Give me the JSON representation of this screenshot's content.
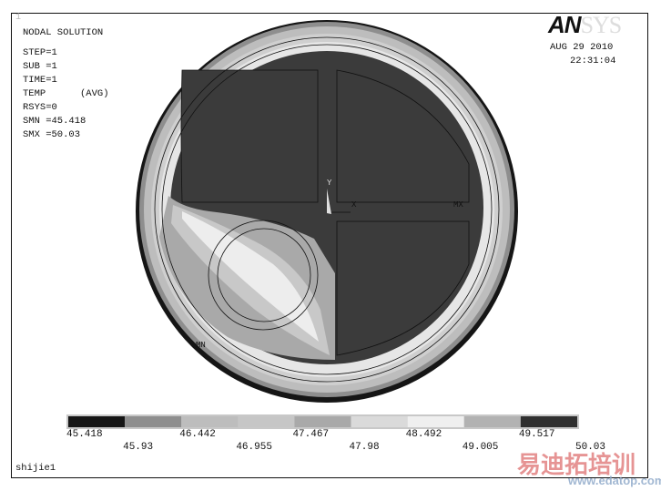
{
  "window_number": "1",
  "title": "NODAL SOLUTION",
  "info": [
    "STEP=1",
    "SUB =1",
    "TIME=1",
    "TEMP      (AVG)",
    "RSYS=0",
    "SMN =45.418",
    "SMX =50.03"
  ],
  "logo": {
    "part1": "AN",
    "part2": "SYS"
  },
  "date": "AUG 29 2010",
  "time": "22:31:04",
  "markers": {
    "min": "MN",
    "max": "MX",
    "axis_x": "X",
    "axis_y": "Y",
    "axis_z": "Z"
  },
  "legend": {
    "labels": [
      "45.418",
      "45.93",
      "46.442",
      "46.955",
      "47.467",
      "47.98",
      "48.492",
      "49.005",
      "49.517",
      "50.03"
    ],
    "colors": [
      "#161616",
      "#8e8e8e",
      "#bdbdbd",
      "#c6c6c6",
      "#a9a9a9",
      "#dadada",
      "#efefef",
      "#b2b2b2",
      "#303030"
    ]
  },
  "footer_label": "shijie1",
  "watermark": {
    "cn": "易迪拓培训",
    "url": "www.edatop.com"
  },
  "colors": {
    "interior": "#3b3b3b",
    "outline": "#111111"
  }
}
